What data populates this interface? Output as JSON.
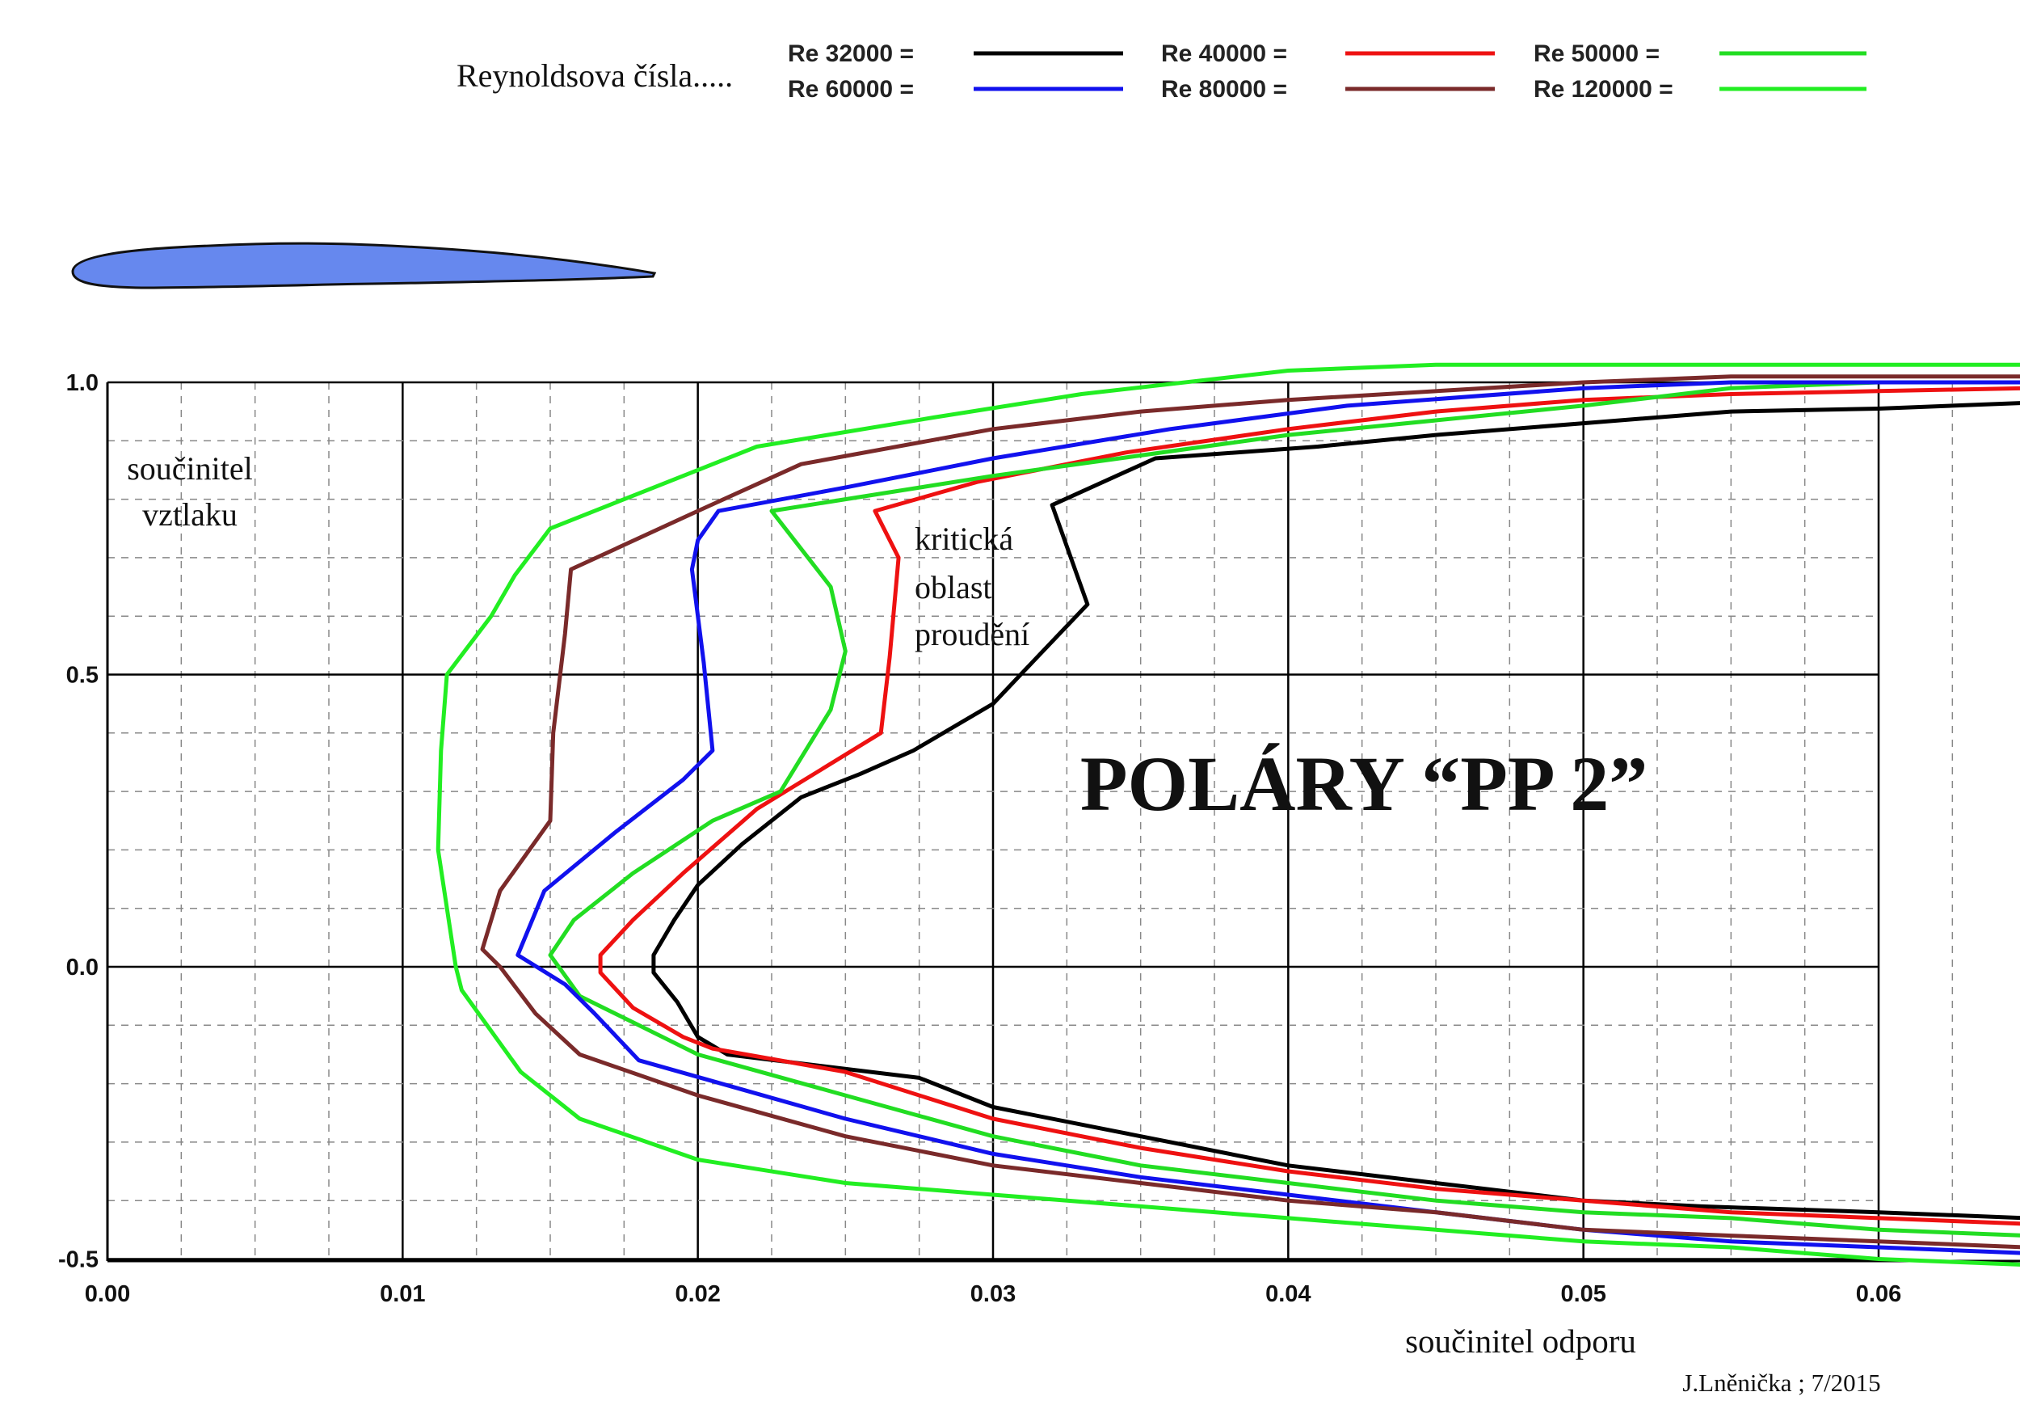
{
  "chart_data": {
    "type": "line",
    "title": "POLÁRY  “PP 2”",
    "xlabel": "součinitel  odporu",
    "ylabel_lines": [
      "součinitel",
      "vztlaku"
    ],
    "annotation_lines": [
      "kritická",
      "oblast",
      "proudění"
    ],
    "legend_title": "Reynoldsova čísla.....",
    "credit": "J.Lněnička ; 7/2015",
    "xlim": [
      0,
      0.065
    ],
    "ylim": [
      -0.5,
      1.0
    ],
    "x_ticks": [
      "0.00",
      "0.01",
      "0.02",
      "0.03",
      "0.04",
      "0.05",
      "0.06"
    ],
    "x_tick_values": [
      0,
      0.01,
      0.02,
      0.03,
      0.04,
      0.05,
      0.06
    ],
    "y_ticks": [
      "-0.5",
      "0.0",
      "0.5",
      "1.0"
    ],
    "y_tick_values": [
      -0.5,
      0.0,
      0.5,
      1.0
    ],
    "grid": true,
    "legend_position": "top",
    "series": [
      {
        "name": "Re 32000 =",
        "color": "#000000",
        "points": [
          [
            0.065,
            -0.43
          ],
          [
            0.06,
            -0.42
          ],
          [
            0.054,
            -0.41
          ],
          [
            0.05,
            -0.4
          ],
          [
            0.045,
            -0.37
          ],
          [
            0.04,
            -0.34
          ],
          [
            0.035,
            -0.29
          ],
          [
            0.03,
            -0.24
          ],
          [
            0.0275,
            -0.19
          ],
          [
            0.021,
            -0.15
          ],
          [
            0.02,
            -0.12
          ],
          [
            0.0193,
            -0.06
          ],
          [
            0.0185,
            -0.01
          ],
          [
            0.0185,
            0.02
          ],
          [
            0.0192,
            0.08
          ],
          [
            0.02,
            0.14
          ],
          [
            0.0215,
            0.21
          ],
          [
            0.0235,
            0.29
          ],
          [
            0.0255,
            0.33
          ],
          [
            0.0273,
            0.37
          ],
          [
            0.03,
            0.45
          ],
          [
            0.0315,
            0.53
          ],
          [
            0.0332,
            0.62
          ],
          [
            0.032,
            0.79
          ],
          [
            0.0355,
            0.87
          ],
          [
            0.041,
            0.89
          ],
          [
            0.045,
            0.91
          ],
          [
            0.05,
            0.93
          ],
          [
            0.055,
            0.95
          ],
          [
            0.06,
            0.955
          ],
          [
            0.065,
            0.965
          ]
        ]
      },
      {
        "name": "Re 40000 =",
        "color": "#ee1111",
        "points": [
          [
            0.065,
            -0.44
          ],
          [
            0.06,
            -0.43
          ],
          [
            0.055,
            -0.42
          ],
          [
            0.05,
            -0.4
          ],
          [
            0.045,
            -0.38
          ],
          [
            0.04,
            -0.35
          ],
          [
            0.035,
            -0.31
          ],
          [
            0.03,
            -0.26
          ],
          [
            0.025,
            -0.18
          ],
          [
            0.0205,
            -0.14
          ],
          [
            0.0195,
            -0.12
          ],
          [
            0.0178,
            -0.07
          ],
          [
            0.0167,
            -0.01
          ],
          [
            0.0167,
            0.02
          ],
          [
            0.0178,
            0.08
          ],
          [
            0.0195,
            0.16
          ],
          [
            0.022,
            0.27
          ],
          [
            0.0262,
            0.4
          ],
          [
            0.0265,
            0.53
          ],
          [
            0.0268,
            0.7
          ],
          [
            0.026,
            0.78
          ],
          [
            0.0295,
            0.83
          ],
          [
            0.0345,
            0.88
          ],
          [
            0.04,
            0.92
          ],
          [
            0.045,
            0.95
          ],
          [
            0.05,
            0.97
          ],
          [
            0.055,
            0.98
          ],
          [
            0.06,
            0.985
          ],
          [
            0.065,
            0.99
          ]
        ]
      },
      {
        "name": "Re 50000 =",
        "color": "#22dd22",
        "points": [
          [
            0.065,
            -0.46
          ],
          [
            0.06,
            -0.45
          ],
          [
            0.055,
            -0.43
          ],
          [
            0.05,
            -0.42
          ],
          [
            0.045,
            -0.4
          ],
          [
            0.04,
            -0.37
          ],
          [
            0.035,
            -0.34
          ],
          [
            0.03,
            -0.29
          ],
          [
            0.025,
            -0.22
          ],
          [
            0.02,
            -0.15
          ],
          [
            0.018,
            -0.1
          ],
          [
            0.016,
            -0.05
          ],
          [
            0.015,
            0.02
          ],
          [
            0.0158,
            0.08
          ],
          [
            0.0178,
            0.16
          ],
          [
            0.0205,
            0.25
          ],
          [
            0.0228,
            0.3
          ],
          [
            0.0245,
            0.44
          ],
          [
            0.025,
            0.54
          ],
          [
            0.0245,
            0.65
          ],
          [
            0.0225,
            0.78
          ],
          [
            0.03,
            0.84
          ],
          [
            0.04,
            0.91
          ],
          [
            0.05,
            0.96
          ],
          [
            0.055,
            0.99
          ],
          [
            0.06,
            1.0
          ],
          [
            0.065,
            1.0
          ]
        ]
      },
      {
        "name": "Re 60000 =",
        "color": "#1111ee",
        "points": [
          [
            0.065,
            -0.49
          ],
          [
            0.06,
            -0.48
          ],
          [
            0.055,
            -0.47
          ],
          [
            0.05,
            -0.45
          ],
          [
            0.045,
            -0.42
          ],
          [
            0.04,
            -0.39
          ],
          [
            0.035,
            -0.36
          ],
          [
            0.03,
            -0.32
          ],
          [
            0.025,
            -0.26
          ],
          [
            0.0215,
            -0.21
          ],
          [
            0.018,
            -0.16
          ],
          [
            0.0165,
            -0.08
          ],
          [
            0.0155,
            -0.03
          ],
          [
            0.0139,
            0.02
          ],
          [
            0.0148,
            0.13
          ],
          [
            0.0172,
            0.23
          ],
          [
            0.0195,
            0.32
          ],
          [
            0.0205,
            0.37
          ],
          [
            0.0202,
            0.52
          ],
          [
            0.0198,
            0.68
          ],
          [
            0.02,
            0.73
          ],
          [
            0.0207,
            0.78
          ],
          [
            0.025,
            0.82
          ],
          [
            0.03,
            0.87
          ],
          [
            0.036,
            0.92
          ],
          [
            0.042,
            0.96
          ],
          [
            0.05,
            0.99
          ],
          [
            0.055,
            1.0
          ],
          [
            0.06,
            1.0
          ],
          [
            0.065,
            1.0
          ]
        ]
      },
      {
        "name": "Re 80000 =",
        "color": "#7a2a2a",
        "points": [
          [
            0.065,
            -0.48
          ],
          [
            0.06,
            -0.47
          ],
          [
            0.055,
            -0.46
          ],
          [
            0.05,
            -0.45
          ],
          [
            0.045,
            -0.42
          ],
          [
            0.04,
            -0.4
          ],
          [
            0.035,
            -0.37
          ],
          [
            0.03,
            -0.34
          ],
          [
            0.025,
            -0.29
          ],
          [
            0.02,
            -0.22
          ],
          [
            0.016,
            -0.15
          ],
          [
            0.0145,
            -0.08
          ],
          [
            0.0133,
            0.0
          ],
          [
            0.0127,
            0.03
          ],
          [
            0.0133,
            0.13
          ],
          [
            0.015,
            0.25
          ],
          [
            0.0151,
            0.4
          ],
          [
            0.0155,
            0.57
          ],
          [
            0.0157,
            0.68
          ],
          [
            0.02,
            0.78
          ],
          [
            0.0235,
            0.86
          ],
          [
            0.03,
            0.92
          ],
          [
            0.035,
            0.95
          ],
          [
            0.04,
            0.97
          ],
          [
            0.05,
            1.0
          ],
          [
            0.055,
            1.01
          ],
          [
            0.06,
            1.01
          ],
          [
            0.065,
            1.01
          ]
        ]
      },
      {
        "name": "Re 120000 =",
        "color": "#22ee22",
        "points": [
          [
            0.065,
            -0.51
          ],
          [
            0.06,
            -0.5
          ],
          [
            0.055,
            -0.48
          ],
          [
            0.05,
            -0.47
          ],
          [
            0.045,
            -0.45
          ],
          [
            0.04,
            -0.43
          ],
          [
            0.035,
            -0.41
          ],
          [
            0.03,
            -0.39
          ],
          [
            0.025,
            -0.37
          ],
          [
            0.02,
            -0.33
          ],
          [
            0.016,
            -0.26
          ],
          [
            0.014,
            -0.18
          ],
          [
            0.012,
            -0.04
          ],
          [
            0.0118,
            0.0
          ],
          [
            0.0112,
            0.2
          ],
          [
            0.0113,
            0.37
          ],
          [
            0.0115,
            0.5
          ],
          [
            0.013,
            0.6
          ],
          [
            0.0138,
            0.67
          ],
          [
            0.015,
            0.75
          ],
          [
            0.018,
            0.81
          ],
          [
            0.022,
            0.89
          ],
          [
            0.028,
            0.94
          ],
          [
            0.033,
            0.98
          ],
          [
            0.04,
            1.02
          ],
          [
            0.045,
            1.03
          ],
          [
            0.05,
            1.03
          ],
          [
            0.06,
            1.03
          ],
          [
            0.065,
            1.03
          ]
        ]
      }
    ]
  }
}
